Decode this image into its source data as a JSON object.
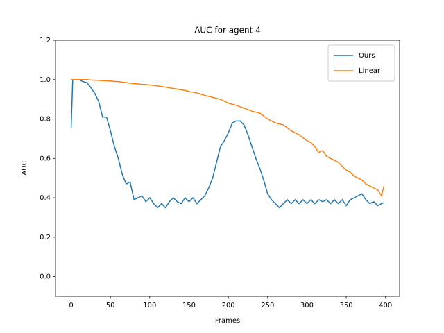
{
  "chart_data": {
    "type": "line",
    "title": "AUC for agent 4",
    "xlabel": "Frames",
    "ylabel": "AUC",
    "x": [
      0,
      2,
      5,
      10,
      15,
      20,
      25,
      30,
      35,
      40,
      45,
      50,
      55,
      60,
      65,
      70,
      75,
      80,
      85,
      90,
      95,
      100,
      105,
      110,
      115,
      120,
      125,
      130,
      135,
      140,
      145,
      150,
      155,
      160,
      165,
      170,
      175,
      180,
      185,
      190,
      195,
      200,
      205,
      210,
      215,
      220,
      225,
      230,
      235,
      240,
      245,
      250,
      255,
      260,
      265,
      270,
      275,
      280,
      285,
      290,
      295,
      300,
      305,
      310,
      315,
      320,
      325,
      330,
      335,
      340,
      345,
      350,
      355,
      360,
      365,
      370,
      375,
      380,
      385,
      390,
      395,
      398
    ],
    "series": [
      {
        "name": "Ours",
        "color": "#1f77b4",
        "values": [
          0.755,
          1.0,
          1.0,
          1.0,
          0.99,
          0.985,
          0.96,
          0.93,
          0.89,
          0.81,
          0.81,
          0.74,
          0.66,
          0.6,
          0.52,
          0.47,
          0.48,
          0.39,
          0.4,
          0.41,
          0.38,
          0.4,
          0.37,
          0.35,
          0.37,
          0.35,
          0.38,
          0.4,
          0.38,
          0.37,
          0.4,
          0.38,
          0.4,
          0.37,
          0.39,
          0.41,
          0.45,
          0.5,
          0.58,
          0.66,
          0.69,
          0.73,
          0.78,
          0.79,
          0.79,
          0.77,
          0.72,
          0.66,
          0.6,
          0.55,
          0.49,
          0.42,
          0.39,
          0.37,
          0.35,
          0.37,
          0.39,
          0.37,
          0.39,
          0.37,
          0.39,
          0.37,
          0.39,
          0.37,
          0.39,
          0.38,
          0.39,
          0.37,
          0.39,
          0.37,
          0.39,
          0.36,
          0.39,
          0.4,
          0.41,
          0.42,
          0.39,
          0.37,
          0.38,
          0.36,
          0.37,
          0.375
        ]
      },
      {
        "name": "Linear",
        "color": "#ff7f0e",
        "values": [
          1.0,
          1.0,
          1.0,
          1.0,
          1.0,
          1.0,
          0.998,
          0.997,
          0.996,
          0.995,
          0.994,
          0.993,
          0.991,
          0.99,
          0.987,
          0.985,
          0.982,
          0.98,
          0.978,
          0.976,
          0.975,
          0.973,
          0.97,
          0.968,
          0.965,
          0.962,
          0.958,
          0.955,
          0.952,
          0.948,
          0.945,
          0.94,
          0.936,
          0.932,
          0.926,
          0.92,
          0.915,
          0.91,
          0.905,
          0.9,
          0.89,
          0.88,
          0.875,
          0.87,
          0.862,
          0.855,
          0.848,
          0.84,
          0.835,
          0.83,
          0.815,
          0.8,
          0.79,
          0.78,
          0.775,
          0.77,
          0.755,
          0.74,
          0.73,
          0.72,
          0.705,
          0.69,
          0.68,
          0.66,
          0.63,
          0.64,
          0.61,
          0.6,
          0.59,
          0.58,
          0.56,
          0.54,
          0.53,
          0.51,
          0.5,
          0.49,
          0.47,
          0.46,
          0.45,
          0.44,
          0.41,
          0.46
        ]
      }
    ],
    "xlim": [
      -19.9,
      417.9
    ],
    "xticks": [
      0,
      50,
      100,
      150,
      200,
      250,
      300,
      350,
      400
    ],
    "ylim": [
      -0.1,
      1.2
    ],
    "yticks": [
      {
        "value": 0,
        "label": "0.0"
      },
      0.2,
      0.4,
      0.6,
      0.8,
      {
        "value": 1,
        "label": "1.0"
      },
      1.2
    ],
    "legend": "upper right",
    "grid": false
  }
}
